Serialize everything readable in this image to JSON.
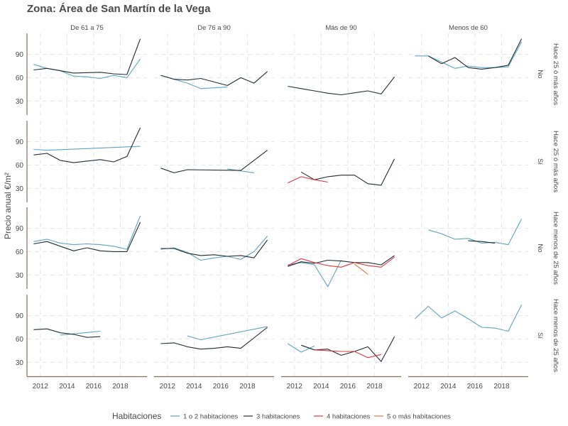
{
  "chart_data": {
    "type": "line",
    "title": "Zona: Área de San Martín de la Vega",
    "ylabel": "Precio anual €/m²",
    "xlabel": "",
    "ylim": [
      12,
      117
    ],
    "xlim": [
      2011,
      2020
    ],
    "yticks": [
      30,
      60,
      90
    ],
    "xticks": [
      2012,
      2014,
      2016,
      2018
    ],
    "grid": true,
    "legend_title": "Habitaciones",
    "legend_position": "bottom",
    "series_defs": [
      {
        "name": "1 o 2 habitaciones",
        "color": "#5aa4c8"
      },
      {
        "name": "3 habitaciones",
        "color": "#1f2d33"
      },
      {
        "name": "4 habitaciones",
        "color": "#e0393b"
      },
      {
        "name": "5 o más habitaciones",
        "color": "#e07b40"
      }
    ],
    "col_facets": [
      "De 61 a 75",
      "De 76 a 90",
      "Más de 90",
      "Menos de 60"
    ],
    "row_facets": [
      {
        "label1": "Hace 25 ó más años",
        "label2": "No"
      },
      {
        "label1": "Hace 25 ó más años",
        "label2": "Sí"
      },
      {
        "label1": "Hace menos de 25 años",
        "label2": "No"
      },
      {
        "label1": "Hace menos de 25 años",
        "label2": "Sí"
      }
    ],
    "panels": [
      [
        [
          {
            "series": 0,
            "points": [
              [
                2011.5,
                77
              ],
              [
                2012.5,
                72
              ],
              [
                2013.5,
                69
              ],
              [
                2014.5,
                62
              ],
              [
                2015.5,
                61
              ],
              [
                2016.5,
                59
              ],
              [
                2017.5,
                63
              ],
              [
                2018.5,
                60
              ],
              [
                2019.5,
                84
              ]
            ]
          },
          {
            "series": 1,
            "points": [
              [
                2011.5,
                70
              ],
              [
                2012.5,
                72
              ],
              [
                2013.5,
                69
              ],
              [
                2014.5,
                66
              ],
              [
                2016.5,
                67
              ],
              [
                2017.5,
                65
              ],
              [
                2018.5,
                64
              ],
              [
                2019.5,
                110
              ]
            ]
          }
        ],
        [
          {
            "series": 0,
            "points": [
              [
                2011.5,
                63
              ],
              [
                2012.5,
                58
              ],
              [
                2013.5,
                53
              ],
              [
                2014.5,
                46
              ],
              [
                2016.5,
                48
              ]
            ]
          },
          {
            "series": 1,
            "points": [
              [
                2011.5,
                63
              ],
              [
                2012.5,
                58
              ],
              [
                2013.5,
                57
              ],
              [
                2014.5,
                59
              ],
              [
                2016.5,
                50
              ],
              [
                2017.5,
                60
              ],
              [
                2018.5,
                53
              ],
              [
                2019.5,
                68
              ]
            ]
          }
        ],
        [
          {
            "series": 1,
            "points": [
              [
                2011.5,
                49
              ],
              [
                2012.5,
                46
              ],
              [
                2013.5,
                43
              ],
              [
                2014.5,
                40
              ],
              [
                2015.5,
                38
              ],
              [
                2017.5,
                43
              ],
              [
                2018.5,
                39
              ],
              [
                2019.5,
                61
              ]
            ]
          }
        ],
        [
          {
            "series": 0,
            "points": [
              [
                2011.5,
                88
              ],
              [
                2012.5,
                88
              ],
              [
                2013.5,
                80
              ],
              [
                2014.5,
                72
              ],
              [
                2015.5,
                75
              ],
              [
                2016.5,
                73
              ],
              [
                2017.5,
                73
              ],
              [
                2018.5,
                74
              ],
              [
                2019.5,
                106
              ]
            ]
          },
          {
            "series": 1,
            "points": [
              [
                2012.5,
                88
              ],
              [
                2013.5,
                78
              ],
              [
                2014.5,
                86
              ],
              [
                2015.5,
                73
              ],
              [
                2016.5,
                71
              ],
              [
                2017.5,
                73
              ],
              [
                2018.5,
                76
              ],
              [
                2019.5,
                110
              ]
            ]
          }
        ]
      ],
      [
        [
          {
            "series": 0,
            "points": [
              [
                2011.5,
                80
              ],
              [
                2012.5,
                79
              ],
              [
                2019.5,
                84
              ]
            ]
          },
          {
            "series": 1,
            "points": [
              [
                2011.5,
                73
              ],
              [
                2012.5,
                75
              ],
              [
                2013.5,
                66
              ],
              [
                2014.5,
                63
              ],
              [
                2016.5,
                67
              ],
              [
                2017.5,
                64
              ],
              [
                2018.5,
                71
              ],
              [
                2019.5,
                108
              ]
            ]
          }
        ],
        [
          {
            "series": 0,
            "points": [
              [
                2016.5,
                55
              ],
              [
                2018.5,
                50
              ]
            ]
          },
          {
            "series": 1,
            "points": [
              [
                2011.5,
                56
              ],
              [
                2012.5,
                50
              ],
              [
                2013.5,
                54
              ],
              [
                2017.5,
                53
              ],
              [
                2019.5,
                79
              ]
            ]
          }
        ],
        [
          {
            "series": 1,
            "points": [
              [
                2012.5,
                51
              ],
              [
                2013.5,
                41
              ],
              [
                2014.5,
                45
              ],
              [
                2015.5,
                47
              ],
              [
                2016.5,
                47
              ],
              [
                2017.5,
                36
              ],
              [
                2018.5,
                34
              ],
              [
                2019.5,
                68
              ]
            ]
          },
          {
            "series": 2,
            "points": [
              [
                2011.5,
                37
              ],
              [
                2012.5,
                45
              ],
              [
                2013.5,
                41
              ],
              [
                2014.5,
                38
              ]
            ]
          }
        ],
        []
      ],
      [
        [
          {
            "series": 0,
            "points": [
              [
                2011.5,
                73
              ],
              [
                2012.5,
                76
              ],
              [
                2013.5,
                71
              ],
              [
                2014.5,
                69
              ],
              [
                2015.5,
                70
              ],
              [
                2016.5,
                69
              ],
              [
                2017.5,
                67
              ],
              [
                2018.5,
                63
              ],
              [
                2019.5,
                106
              ]
            ]
          },
          {
            "series": 1,
            "points": [
              [
                2011.5,
                70
              ],
              [
                2012.5,
                73
              ],
              [
                2013.5,
                67
              ],
              [
                2014.5,
                61
              ],
              [
                2015.5,
                65
              ],
              [
                2016.5,
                61
              ],
              [
                2017.5,
                60
              ],
              [
                2018.5,
                60
              ],
              [
                2019.5,
                98
              ]
            ]
          }
        ],
        [
          {
            "series": 0,
            "points": [
              [
                2011.5,
                63
              ],
              [
                2012.5,
                65
              ],
              [
                2013.5,
                59
              ],
              [
                2014.5,
                49
              ],
              [
                2015.5,
                52
              ],
              [
                2016.5,
                54
              ],
              [
                2017.5,
                50
              ],
              [
                2018.5,
                60
              ],
              [
                2019.5,
                80
              ]
            ]
          },
          {
            "series": 1,
            "points": [
              [
                2011.5,
                64
              ],
              [
                2012.5,
                64
              ],
              [
                2013.5,
                58
              ],
              [
                2014.5,
                55
              ],
              [
                2015.5,
                56
              ],
              [
                2016.5,
                54
              ],
              [
                2017.5,
                55
              ],
              [
                2018.5,
                52
              ],
              [
                2019.5,
                75
              ]
            ]
          }
        ],
        [
          {
            "series": 0,
            "points": [
              [
                2011.5,
                43
              ],
              [
                2012.5,
                46
              ],
              [
                2013.5,
                43
              ],
              [
                2014.5,
                15
              ],
              [
                2015.5,
                49
              ]
            ]
          },
          {
            "series": 1,
            "points": [
              [
                2011.5,
                41
              ],
              [
                2012.5,
                47
              ],
              [
                2013.5,
                45
              ],
              [
                2014.5,
                49
              ],
              [
                2015.5,
                48
              ],
              [
                2016.5,
                46
              ],
              [
                2017.5,
                46
              ],
              [
                2018.5,
                43
              ],
              [
                2019.5,
                55
              ]
            ]
          },
          {
            "series": 2,
            "points": [
              [
                2011.5,
                42
              ],
              [
                2012.5,
                51
              ],
              [
                2013.5,
                46
              ],
              [
                2014.5,
                42
              ],
              [
                2015.5,
                40
              ],
              [
                2016.5,
                46
              ],
              [
                2017.5,
                42
              ],
              [
                2018.5,
                40
              ],
              [
                2019.5,
                53
              ]
            ]
          },
          {
            "series": 3,
            "points": [
              [
                2016.5,
                44
              ],
              [
                2017.5,
                31
              ]
            ]
          }
        ],
        [
          {
            "series": 0,
            "points": [
              [
                2012.5,
                88
              ],
              [
                2013.5,
                83
              ],
              [
                2014.5,
                76
              ],
              [
                2015.5,
                77
              ],
              [
                2016.5,
                71
              ],
              [
                2017.5,
                72
              ],
              [
                2018.5,
                69
              ],
              [
                2019.5,
                102
              ]
            ]
          },
          {
            "series": 1,
            "points": [
              [
                2015.5,
                74
              ],
              [
                2016.5,
                73
              ],
              [
                2017.5,
                71
              ]
            ]
          }
        ]
      ],
      [
        [
          {
            "series": 0,
            "points": [
              [
                2013.5,
                65
              ],
              [
                2016.5,
                70
              ]
            ]
          },
          {
            "series": 1,
            "points": [
              [
                2011.5,
                72
              ],
              [
                2012.5,
                73
              ],
              [
                2013.5,
                68
              ],
              [
                2014.5,
                66
              ],
              [
                2015.5,
                62
              ],
              [
                2016.5,
                63
              ]
            ]
          }
        ],
        [
          {
            "series": 0,
            "points": [
              [
                2013.5,
                64
              ],
              [
                2014.5,
                59
              ],
              [
                2019.5,
                76
              ]
            ]
          },
          {
            "series": 1,
            "points": [
              [
                2011.5,
                54
              ],
              [
                2012.5,
                55
              ],
              [
                2013.5,
                50
              ],
              [
                2014.5,
                47
              ],
              [
                2015.5,
                48
              ],
              [
                2016.5,
                50
              ],
              [
                2017.5,
                48
              ],
              [
                2019.5,
                75
              ]
            ]
          }
        ],
        [
          {
            "series": 0,
            "points": [
              [
                2011.5,
                54
              ],
              [
                2012.5,
                43
              ],
              [
                2013.5,
                51
              ]
            ]
          },
          {
            "series": 1,
            "points": [
              [
                2012.5,
                52
              ],
              [
                2013.5,
                46
              ],
              [
                2014.5,
                47
              ],
              [
                2015.5,
                39
              ],
              [
                2016.5,
                44
              ],
              [
                2017.5,
                50
              ],
              [
                2018.5,
                31
              ],
              [
                2019.5,
                63
              ]
            ]
          },
          {
            "series": 2,
            "points": [
              [
                2013.5,
                46
              ],
              [
                2014.5,
                45
              ],
              [
                2015.5,
                44
              ],
              [
                2016.5,
                44
              ],
              [
                2017.5,
                36
              ],
              [
                2018.5,
                40
              ]
            ]
          }
        ],
        [
          {
            "series": 0,
            "points": [
              [
                2011.5,
                86
              ],
              [
                2012.5,
                102
              ],
              [
                2013.5,
                87
              ],
              [
                2014.5,
                96
              ],
              [
                2015.5,
                86
              ],
              [
                2016.5,
                75
              ],
              [
                2017.5,
                74
              ],
              [
                2018.5,
                70
              ],
              [
                2019.5,
                104
              ]
            ]
          }
        ]
      ]
    ]
  }
}
